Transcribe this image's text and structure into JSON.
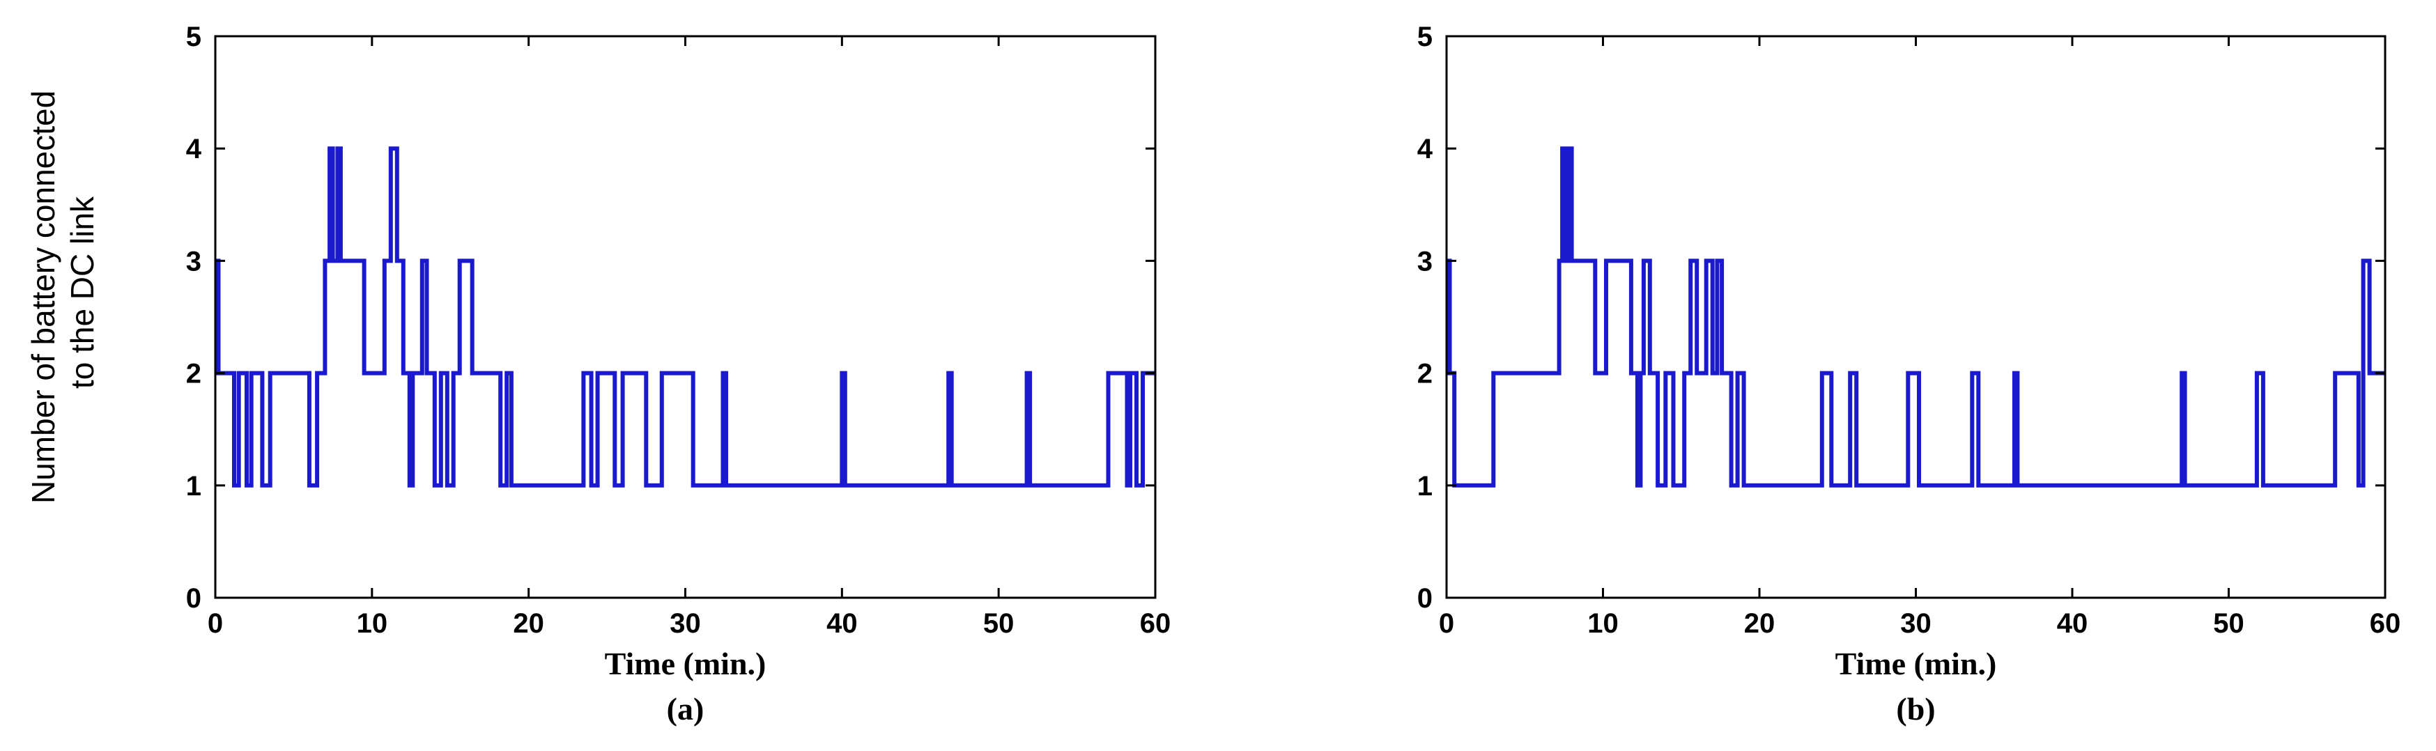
{
  "ylabel_lines": [
    "Number of battery connected",
    "to the DC link"
  ],
  "chart_data": [
    {
      "type": "line",
      "panel_label": "(a)",
      "xlabel": "Time (min.)",
      "ylabel": "Number of battery connected to the DC link",
      "xlim": [
        0,
        60
      ],
      "ylim": [
        0,
        5
      ],
      "xticks": [
        0,
        10,
        20,
        30,
        40,
        50,
        60
      ],
      "yticks": [
        0,
        1,
        2,
        3,
        4,
        5
      ],
      "grid": false,
      "color": "#1a1acc",
      "series": [
        {
          "x": [
            0,
            0.2,
            0.5,
            1.2,
            1.5,
            2.0,
            2.3,
            3.0,
            3.5,
            6.0,
            6.5,
            7.0,
            7.3,
            7.5,
            7.8,
            8.0,
            9.5,
            10.8,
            11.2,
            11.6,
            12.0,
            12.4,
            12.6,
            13.2,
            13.5,
            14.0,
            14.4,
            14.8,
            15.2,
            15.6,
            16.4,
            16.8,
            18.2,
            18.6,
            18.9,
            19.2,
            23.5,
            24.0,
            24.4,
            25.5,
            26.0,
            27.5,
            28.5,
            29.0,
            30.5,
            32.4,
            32.6,
            32.8,
            40.0,
            40.2,
            40.4,
            46.8,
            47.0,
            47.2,
            51.8,
            52.0,
            52.2,
            57.0,
            57.3,
            58.2,
            58.4,
            58.8,
            59.2,
            60.0
          ],
          "y": [
            3,
            2,
            2,
            1,
            2,
            1,
            2,
            1,
            2,
            1,
            2,
            3,
            4,
            3,
            4,
            3,
            2,
            3,
            4,
            3,
            2,
            1,
            2,
            3,
            2,
            1,
            2,
            1,
            2,
            3,
            2,
            2,
            1,
            2,
            1,
            1,
            2,
            1,
            2,
            1,
            2,
            1,
            2,
            2,
            1,
            2,
            1,
            1,
            2,
            1,
            1,
            2,
            1,
            1,
            2,
            1,
            1,
            2,
            2,
            1,
            2,
            1,
            2,
            2
          ]
        }
      ]
    },
    {
      "type": "line",
      "panel_label": "(b)",
      "xlabel": "Time (min.)",
      "ylabel": "",
      "xlim": [
        0,
        60
      ],
      "ylim": [
        0,
        5
      ],
      "xticks": [
        0,
        10,
        20,
        30,
        40,
        50,
        60
      ],
      "yticks": [
        0,
        1,
        2,
        3,
        4,
        5
      ],
      "grid": false,
      "color": "#1a1acc",
      "series": [
        {
          "x": [
            0,
            0.2,
            0.5,
            3.0,
            7.2,
            7.4,
            7.6,
            7.8,
            8.0,
            9.5,
            10.2,
            11.0,
            11.8,
            12.2,
            12.4,
            12.6,
            13.0,
            13.5,
            14.0,
            14.5,
            15.2,
            15.6,
            16.0,
            16.6,
            17.0,
            17.3,
            17.6,
            18.2,
            18.6,
            19.0,
            19.4,
            24.0,
            24.6,
            25.8,
            26.2,
            27.2,
            29.5,
            30.2,
            33.6,
            34.0,
            36.3,
            36.5,
            47.0,
            47.2,
            51.8,
            52.2,
            56.8,
            58.3,
            58.6,
            59.0,
            59.4,
            60.0
          ],
          "y": [
            3,
            2,
            1,
            2,
            3,
            4,
            3,
            4,
            3,
            2,
            3,
            3,
            2,
            1,
            2,
            3,
            2,
            1,
            2,
            1,
            2,
            3,
            2,
            3,
            2,
            3,
            2,
            1,
            2,
            1,
            1,
            2,
            1,
            2,
            1,
            1,
            2,
            1,
            2,
            1,
            2,
            1,
            2,
            1,
            2,
            1,
            2,
            1,
            3,
            2,
            2,
            2
          ]
        }
      ]
    }
  ]
}
